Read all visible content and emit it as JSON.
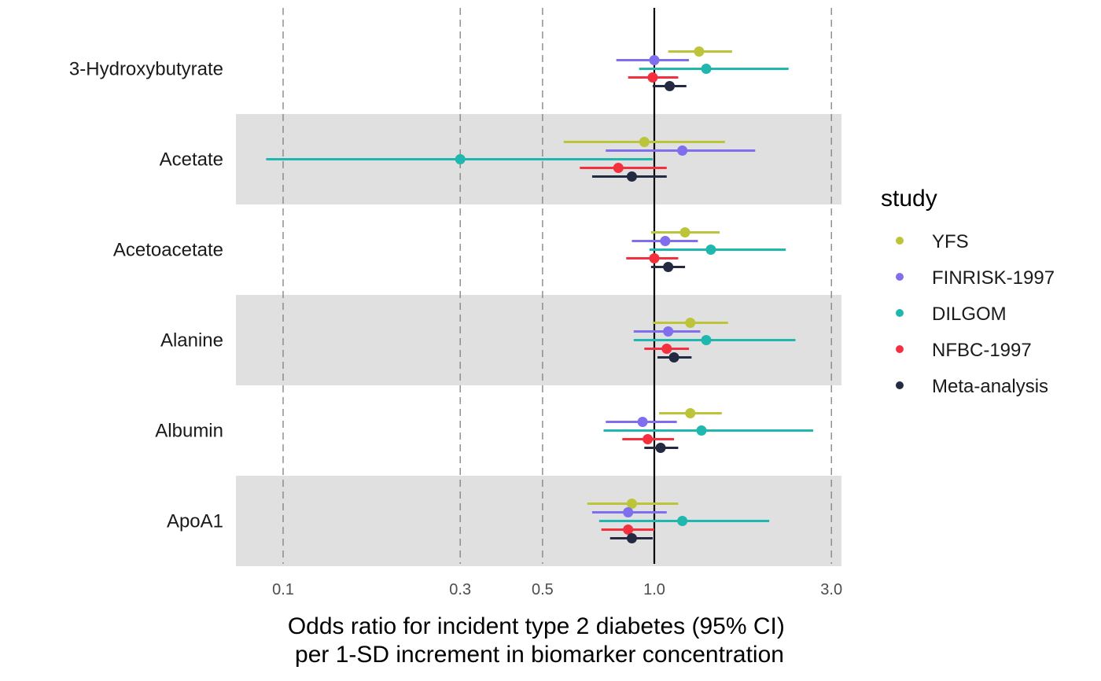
{
  "chart_data": {
    "type": "forest",
    "xlabel": [
      "Odds ratio for incident type 2 diabetes (95% CI)",
      "per 1-SD increment in biomarker concentration"
    ],
    "ylabel": "",
    "x_scale": "log",
    "xlim": [
      0.074,
      3.2
    ],
    "x_ticks": [
      0.1,
      0.3,
      0.5,
      1.0,
      3.0
    ],
    "x_tick_labels": [
      "0.1",
      "0.3",
      "0.5",
      "1.0",
      "3.0"
    ],
    "reference_line": 1.0,
    "dashed_gridlines": true,
    "alternating_band_color": "#e0e0e0",
    "categories": [
      "3-Hydroxybutyrate",
      "Acetate",
      "Acetoacetate",
      "Alanine",
      "Albumin",
      "ApoA1"
    ],
    "legend": {
      "title": "study",
      "position": "right"
    },
    "series": [
      {
        "name": "YFS",
        "color": "#bcc53a",
        "points": [
          {
            "or": 1.32,
            "lo": 1.09,
            "hi": 1.62
          },
          {
            "or": 0.94,
            "lo": 0.57,
            "hi": 1.55
          },
          {
            "or": 1.21,
            "lo": 0.98,
            "hi": 1.5
          },
          {
            "or": 1.25,
            "lo": 0.99,
            "hi": 1.58
          },
          {
            "or": 1.25,
            "lo": 1.03,
            "hi": 1.52
          },
          {
            "or": 0.87,
            "lo": 0.66,
            "hi": 1.16
          }
        ]
      },
      {
        "name": "FINRISK-1997",
        "color": "#7f6fee",
        "points": [
          {
            "or": 1.0,
            "lo": 0.79,
            "hi": 1.24
          },
          {
            "or": 1.19,
            "lo": 0.74,
            "hi": 1.87
          },
          {
            "or": 1.07,
            "lo": 0.87,
            "hi": 1.31
          },
          {
            "or": 1.09,
            "lo": 0.88,
            "hi": 1.33
          },
          {
            "or": 0.93,
            "lo": 0.74,
            "hi": 1.15
          },
          {
            "or": 0.85,
            "lo": 0.68,
            "hi": 1.08
          }
        ]
      },
      {
        "name": "DILGOM",
        "color": "#20b7ae",
        "points": [
          {
            "or": 1.38,
            "lo": 0.91,
            "hi": 2.3
          },
          {
            "or": 0.3,
            "lo": 0.09,
            "hi": 0.99
          },
          {
            "or": 1.42,
            "lo": 0.97,
            "hi": 2.26
          },
          {
            "or": 1.38,
            "lo": 0.88,
            "hi": 2.4
          },
          {
            "or": 1.34,
            "lo": 0.73,
            "hi": 2.68
          },
          {
            "or": 1.19,
            "lo": 0.71,
            "hi": 2.04
          }
        ]
      },
      {
        "name": "NFBC-1997",
        "color": "#f4303f",
        "points": [
          {
            "or": 0.99,
            "lo": 0.85,
            "hi": 1.16
          },
          {
            "or": 0.8,
            "lo": 0.63,
            "hi": 1.08
          },
          {
            "or": 1.0,
            "lo": 0.84,
            "hi": 1.16
          },
          {
            "or": 1.08,
            "lo": 0.94,
            "hi": 1.24
          },
          {
            "or": 0.96,
            "lo": 0.82,
            "hi": 1.13
          },
          {
            "or": 0.85,
            "lo": 0.72,
            "hi": 1.0
          }
        ]
      },
      {
        "name": "Meta-analysis",
        "color": "#232a42",
        "points": [
          {
            "or": 1.1,
            "lo": 0.99,
            "hi": 1.22
          },
          {
            "or": 0.87,
            "lo": 0.68,
            "hi": 1.08
          },
          {
            "or": 1.09,
            "lo": 0.98,
            "hi": 1.21
          },
          {
            "or": 1.13,
            "lo": 1.02,
            "hi": 1.26
          },
          {
            "or": 1.04,
            "lo": 0.94,
            "hi": 1.16
          },
          {
            "or": 0.87,
            "lo": 0.76,
            "hi": 0.99
          }
        ]
      }
    ]
  }
}
